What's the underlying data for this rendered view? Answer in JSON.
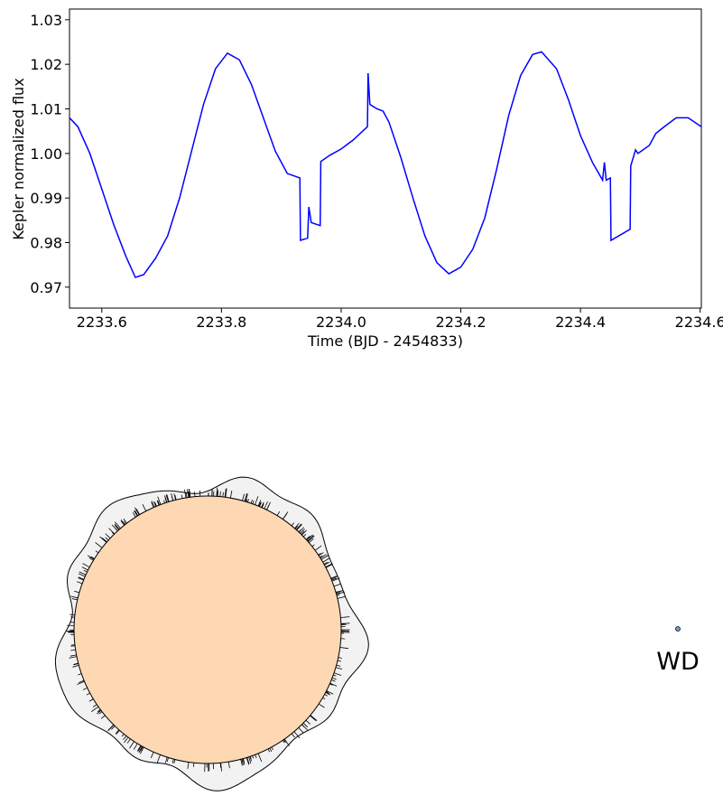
{
  "chart_data": {
    "type": "line",
    "xlabel": "Time (BJD - 2454833)",
    "ylabel": "Kepler normalized flux",
    "xlim": [
      2233.546,
      2234.602
    ],
    "xticks": [
      2233.6,
      2233.8,
      {
        "value": 2234,
        "label": "2234.0"
      },
      2234.2,
      2234.4,
      2234.6
    ],
    "ylim": [
      0.9653,
      1.0324
    ],
    "yticks": [
      0.97,
      0.98,
      0.99,
      {
        "value": 1,
        "label": "1.00"
      },
      1.01,
      1.02,
      1.03
    ],
    "series": [
      {
        "color": "#0000ff",
        "x": [
          2233.546,
          2233.56,
          2233.58,
          2233.6,
          2233.62,
          2233.64,
          2233.656,
          2233.67,
          2233.69,
          2233.71,
          2233.73,
          2233.75,
          2233.77,
          2233.79,
          2233.81,
          2233.83,
          2233.85,
          2233.87,
          2233.89,
          2233.91,
          2233.931,
          2233.932,
          2233.944,
          2233.946,
          2233.95,
          2233.965,
          2233.966,
          2233.98,
          2234.0,
          2234.02,
          2234.044,
          2234.045,
          2234.048,
          2234.06,
          2234.07,
          2234.08,
          2234.1,
          2234.12,
          2234.14,
          2234.16,
          2234.18,
          2234.2,
          2234.22,
          2234.24,
          2234.26,
          2234.28,
          2234.3,
          2234.32,
          2234.335,
          2234.36,
          2234.38,
          2234.4,
          2234.42,
          2234.437,
          2234.44,
          2234.443,
          2234.45,
          2234.451,
          2234.483,
          2234.484,
          2234.492,
          2234.496,
          2234.515,
          2234.526,
          2234.54,
          2234.56,
          2234.58,
          2234.602
        ],
        "values": [
          1.008,
          1.006,
          1.0,
          0.992,
          0.984,
          0.977,
          0.9722,
          0.9728,
          0.9765,
          0.9815,
          0.99,
          1.0005,
          1.011,
          1.019,
          1.0225,
          1.021,
          1.0155,
          1.008,
          1.0005,
          0.9955,
          0.9945,
          0.9805,
          0.981,
          0.988,
          0.9845,
          0.9838,
          0.9982,
          0.9995,
          1.001,
          1.003,
          1.006,
          1.018,
          1.011,
          1.01,
          1.0095,
          1.007,
          0.999,
          0.99,
          0.9815,
          0.9755,
          0.973,
          0.9745,
          0.9785,
          0.9855,
          0.9965,
          1.0085,
          1.0175,
          1.0222,
          1.0228,
          1.019,
          1.012,
          1.004,
          0.998,
          0.994,
          0.998,
          0.994,
          0.9945,
          0.9805,
          0.983,
          0.9972,
          1.0008,
          1.0,
          1.0018,
          1.0045,
          1.006,
          1.008,
          1.008,
          1.006
        ]
      }
    ]
  },
  "diagram": {
    "label": "WD"
  }
}
